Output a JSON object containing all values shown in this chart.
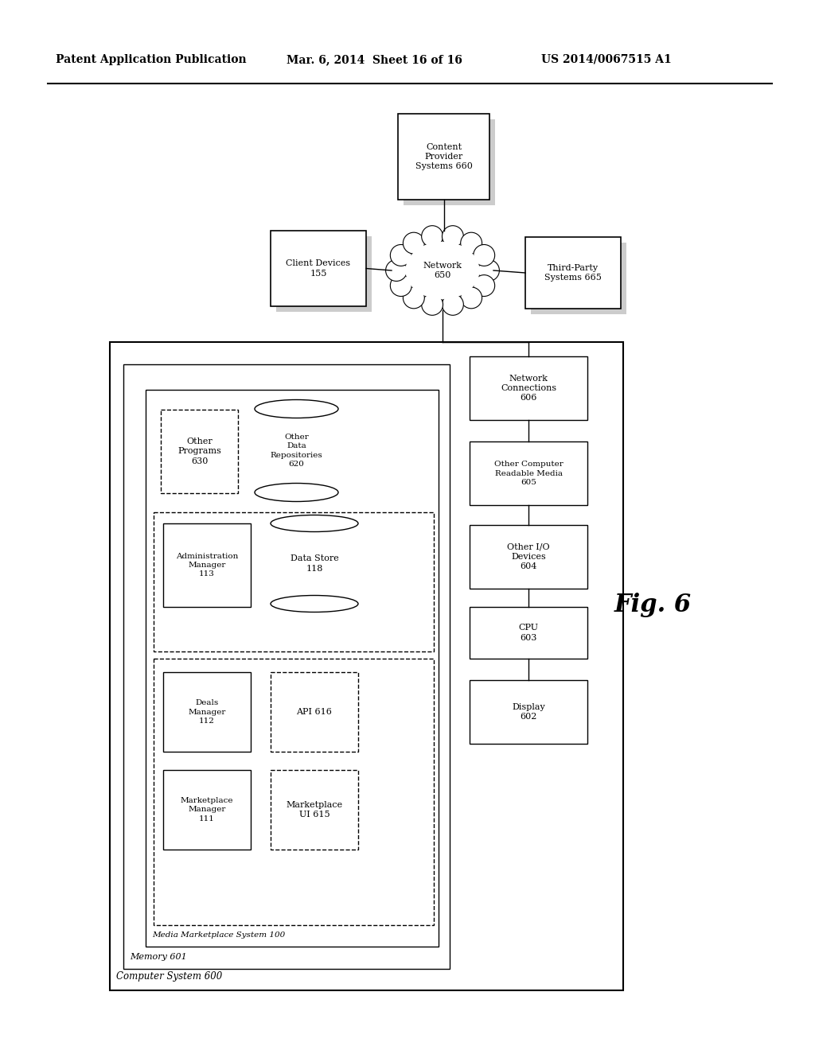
{
  "header_left": "Patent Application Publication",
  "header_mid": "Mar. 6, 2014  Sheet 16 of 16",
  "header_right": "US 2014/0067515 A1",
  "fig_label": "Fig. 6",
  "bg_color": "#ffffff"
}
